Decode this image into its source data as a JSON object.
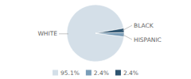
{
  "chart_data": {
    "type": "pie",
    "categories": [
      "WHITE",
      "HISPANIC",
      "BLACK"
    ],
    "values": [
      95.1,
      2.4,
      2.4
    ],
    "value_labels": [
      "95.1%",
      "2.4%",
      "2.4%"
    ],
    "colors": [
      "#d4dfe8",
      "#7a9db8",
      "#2e5470"
    ],
    "legend": "bottom"
  }
}
